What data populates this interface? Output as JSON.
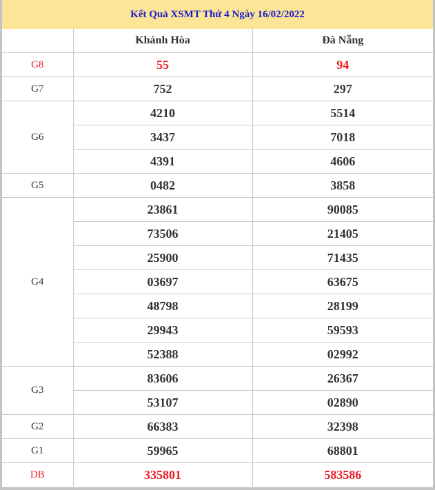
{
  "title": "Kết Quả XSMT Thứ 4 Ngày 16/02/2022",
  "columns": [
    "",
    "Khánh Hòa",
    "Đà Nẵng"
  ],
  "colors": {
    "header_bg": "#fde597",
    "title_text": "#1a1acc",
    "highlight": "#ee1c25"
  },
  "prizes": [
    {
      "label": "G8",
      "highlight": true,
      "rows": [
        [
          "55",
          "94"
        ]
      ]
    },
    {
      "label": "G7",
      "rows": [
        [
          "752",
          "297"
        ]
      ]
    },
    {
      "label": "G6",
      "rows": [
        [
          "4210",
          "5514"
        ],
        [
          "3437",
          "7018"
        ],
        [
          "4391",
          "4606"
        ]
      ]
    },
    {
      "label": "G5",
      "rows": [
        [
          "0482",
          "3858"
        ]
      ]
    },
    {
      "label": "G4",
      "rows": [
        [
          "23861",
          "90085"
        ],
        [
          "73506",
          "21405"
        ],
        [
          "25900",
          "71435"
        ],
        [
          "03697",
          "63675"
        ],
        [
          "48798",
          "28199"
        ],
        [
          "29943",
          "59593"
        ],
        [
          "52388",
          "02992"
        ]
      ]
    },
    {
      "label": "G3",
      "rows": [
        [
          "83606",
          "26367"
        ],
        [
          "53107",
          "02890"
        ]
      ]
    },
    {
      "label": "G2",
      "rows": [
        [
          "66383",
          "32398"
        ]
      ]
    },
    {
      "label": "G1",
      "rows": [
        [
          "59965",
          "68801"
        ]
      ]
    },
    {
      "label": "DB",
      "highlight": true,
      "rows": [
        [
          "335801",
          "583586"
        ]
      ]
    }
  ]
}
